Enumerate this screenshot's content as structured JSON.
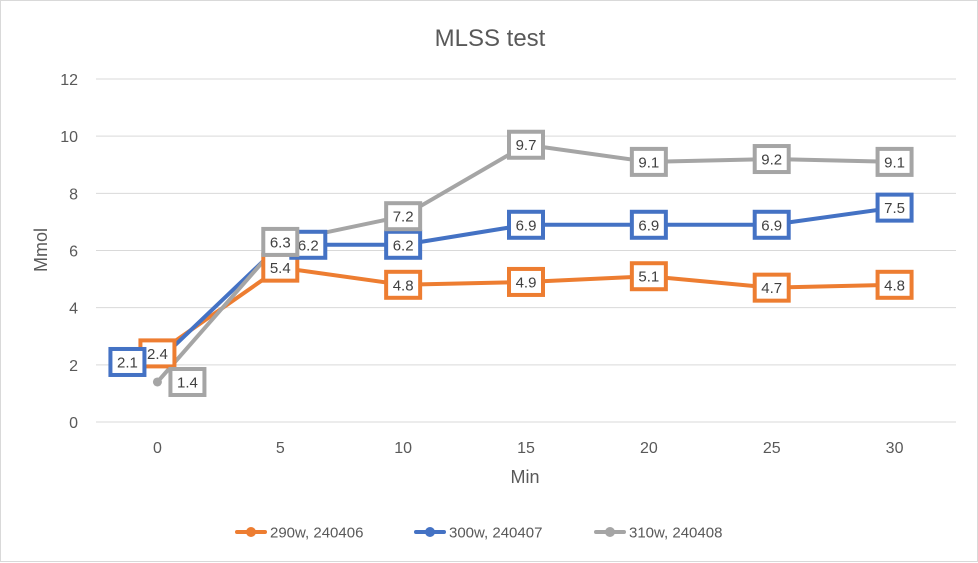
{
  "chart_data": {
    "type": "line",
    "title": "MLSS test",
    "xlabel": "Min",
    "ylabel": "Mmol",
    "x": [
      "0",
      "5",
      "10",
      "15",
      "20",
      "25",
      "30"
    ],
    "ylim": [
      0,
      12
    ],
    "y_ticks": [
      "0",
      "2",
      "4",
      "6",
      "8",
      "10",
      "12"
    ],
    "grid": true,
    "legend_position": "bottom",
    "series": [
      {
        "name": "290w, 240406",
        "color": "#ED7D31",
        "values": [
          2.4,
          5.4,
          4.8,
          4.9,
          5.1,
          4.7,
          4.8
        ],
        "labels": [
          "2.4",
          "5.4",
          "4.8",
          "4.9",
          "5.1",
          "4.7",
          "4.8"
        ]
      },
      {
        "name": "300w, 240407",
        "color": "#4472C4",
        "values": [
          2.1,
          6.2,
          6.2,
          6.9,
          6.9,
          6.9,
          7.5
        ],
        "labels": [
          "2.1",
          "6.2",
          "6.2",
          "6.9",
          "6.9",
          "6.9",
          "7.5"
        ]
      },
      {
        "name": "310w, 240408",
        "color": "#A5A5A5",
        "values": [
          1.4,
          6.3,
          7.2,
          9.7,
          9.1,
          9.2,
          9.1
        ],
        "labels": [
          "1.4",
          "6.3",
          "7.2",
          "9.7",
          "9.1",
          "9.2",
          "9.1"
        ]
      }
    ]
  }
}
